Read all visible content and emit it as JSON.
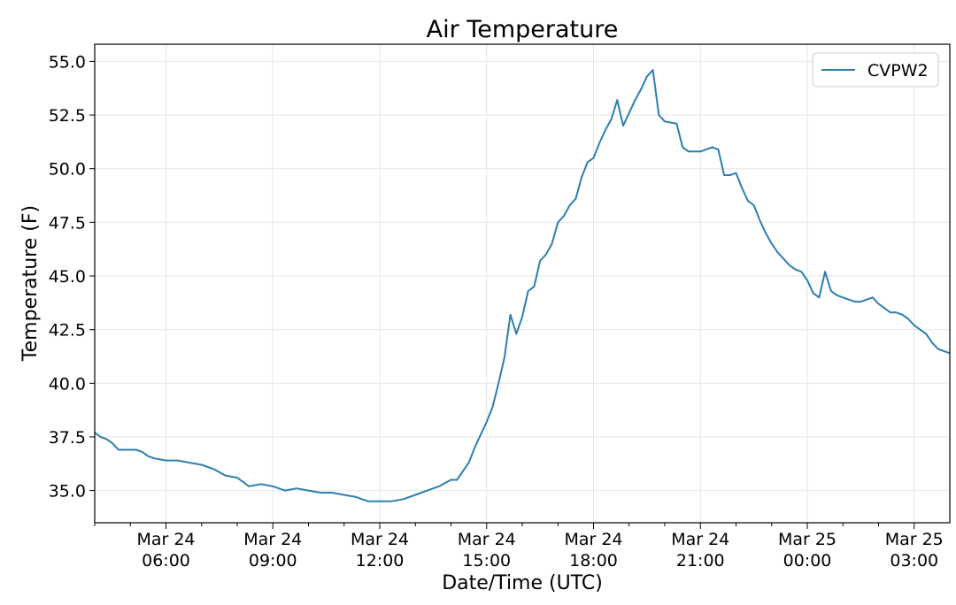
{
  "chart_data": {
    "type": "line",
    "title": "Air Temperature",
    "xlabel": "Date/Time (UTC)",
    "ylabel": "Temperature (F)",
    "x_unit": "hours",
    "xlim": [
      "Mar 24 04:00",
      "Mar 25 04:00"
    ],
    "ylim": [
      33.5,
      55.8
    ],
    "grid": true,
    "legend_position": "top-right",
    "y_ticks": [
      {
        "value": 35.0,
        "label": "35.0"
      },
      {
        "value": 37.5,
        "label": "37.5"
      },
      {
        "value": 40.0,
        "label": "40.0"
      },
      {
        "value": 42.5,
        "label": "42.5"
      },
      {
        "value": 45.0,
        "label": "45.0"
      },
      {
        "value": 47.5,
        "label": "47.5"
      },
      {
        "value": 50.0,
        "label": "50.0"
      },
      {
        "value": 52.5,
        "label": "52.5"
      },
      {
        "value": 55.0,
        "label": "55.0"
      }
    ],
    "x_ticks": [
      {
        "value": "Mar 24 06:00",
        "date": "Mar 24",
        "time": "06:00"
      },
      {
        "value": "Mar 24 09:00",
        "date": "Mar 24",
        "time": "09:00"
      },
      {
        "value": "Mar 24 12:00",
        "date": "Mar 24",
        "time": "12:00"
      },
      {
        "value": "Mar 24 15:00",
        "date": "Mar 24",
        "time": "15:00"
      },
      {
        "value": "Mar 24 18:00",
        "date": "Mar 24",
        "time": "18:00"
      },
      {
        "value": "Mar 24 21:00",
        "date": "Mar 24",
        "time": "21:00"
      },
      {
        "value": "Mar 25 00:00",
        "date": "Mar 25",
        "time": "00:00"
      },
      {
        "value": "Mar 25 03:00",
        "date": "Mar 25",
        "time": "03:00"
      }
    ],
    "x_minor_ticks": [
      "Mar 24 04:00",
      "Mar 24 05:00",
      "Mar 24 07:00",
      "Mar 24 08:00",
      "Mar 24 10:00",
      "Mar 24 11:00",
      "Mar 24 13:00",
      "Mar 24 14:00",
      "Mar 24 16:00",
      "Mar 24 17:00",
      "Mar 24 19:00",
      "Mar 24 20:00",
      "Mar 24 22:00",
      "Mar 24 23:00",
      "Mar 25 01:00",
      "Mar 25 02:00"
    ],
    "series": [
      {
        "name": "CVPW2",
        "color": "#2e7eb0",
        "x": [
          "Mar 24 04:00",
          "Mar 24 04:10",
          "Mar 24 04:20",
          "Mar 24 04:30",
          "Mar 24 04:40",
          "Mar 24 05:00",
          "Mar 24 05:10",
          "Mar 24 05:20",
          "Mar 24 05:30",
          "Mar 24 05:40",
          "Mar 24 06:00",
          "Mar 24 06:20",
          "Mar 24 06:40",
          "Mar 24 07:00",
          "Mar 24 07:20",
          "Mar 24 07:40",
          "Mar 24 08:00",
          "Mar 24 08:20",
          "Mar 24 08:40",
          "Mar 24 09:00",
          "Mar 24 09:20",
          "Mar 24 09:40",
          "Mar 24 10:00",
          "Mar 24 10:20",
          "Mar 24 10:40",
          "Mar 24 11:00",
          "Mar 24 11:20",
          "Mar 24 11:40",
          "Mar 24 12:00",
          "Mar 24 12:20",
          "Mar 24 12:40",
          "Mar 24 13:00",
          "Mar 24 13:20",
          "Mar 24 13:40",
          "Mar 24 14:00",
          "Mar 24 14:10",
          "Mar 24 14:20",
          "Mar 24 14:30",
          "Mar 24 14:40",
          "Mar 24 14:50",
          "Mar 24 15:00",
          "Mar 24 15:10",
          "Mar 24 15:20",
          "Mar 24 15:30",
          "Mar 24 15:40",
          "Mar 24 15:50",
          "Mar 24 16:00",
          "Mar 24 16:10",
          "Mar 24 16:20",
          "Mar 24 16:30",
          "Mar 24 16:40",
          "Mar 24 16:50",
          "Mar 24 17:00",
          "Mar 24 17:10",
          "Mar 24 17:20",
          "Mar 24 17:30",
          "Mar 24 17:40",
          "Mar 24 17:50",
          "Mar 24 18:00",
          "Mar 24 18:10",
          "Mar 24 18:20",
          "Mar 24 18:30",
          "Mar 24 18:40",
          "Mar 24 18:50",
          "Mar 24 19:00",
          "Mar 24 19:10",
          "Mar 24 19:20",
          "Mar 24 19:30",
          "Mar 24 19:40",
          "Mar 24 19:50",
          "Mar 24 20:00",
          "Mar 24 20:20",
          "Mar 24 20:30",
          "Mar 24 20:40",
          "Mar 24 21:00",
          "Mar 24 21:20",
          "Mar 24 21:30",
          "Mar 24 21:40",
          "Mar 24 21:50",
          "Mar 24 22:00",
          "Mar 24 22:10",
          "Mar 24 22:20",
          "Mar 24 22:30",
          "Mar 24 22:40",
          "Mar 24 22:50",
          "Mar 24 23:00",
          "Mar 24 23:10",
          "Mar 24 23:20",
          "Mar 24 23:30",
          "Mar 24 23:40",
          "Mar 24 23:50",
          "Mar 25 00:00",
          "Mar 25 00:10",
          "Mar 25 00:20",
          "Mar 25 00:30",
          "Mar 25 00:40",
          "Mar 25 00:50",
          "Mar 25 01:00",
          "Mar 25 01:10",
          "Mar 25 01:20",
          "Mar 25 01:30",
          "Mar 25 01:40",
          "Mar 25 01:50",
          "Mar 25 02:00",
          "Mar 25 02:10",
          "Mar 25 02:20",
          "Mar 25 02:30",
          "Mar 25 02:40",
          "Mar 25 02:50",
          "Mar 25 03:00",
          "Mar 25 03:10",
          "Mar 25 03:20",
          "Mar 25 03:30",
          "Mar 25 03:40",
          "Mar 25 03:50",
          "Mar 25 04:00"
        ],
        "y": [
          37.7,
          37.5,
          37.4,
          37.2,
          36.9,
          36.9,
          36.9,
          36.8,
          36.6,
          36.5,
          36.4,
          36.4,
          36.3,
          36.2,
          36.0,
          35.7,
          35.6,
          35.2,
          35.3,
          35.2,
          35.0,
          35.1,
          35.0,
          34.9,
          34.9,
          34.8,
          34.7,
          34.5,
          34.5,
          34.5,
          34.6,
          34.8,
          35.0,
          35.2,
          35.5,
          35.5,
          35.9,
          36.3,
          37.0,
          37.6,
          38.2,
          38.9,
          40.0,
          41.2,
          43.2,
          42.3,
          43.1,
          44.3,
          44.5,
          45.7,
          46.0,
          46.5,
          47.5,
          47.8,
          48.3,
          48.6,
          49.6,
          50.3,
          50.5,
          51.2,
          51.8,
          52.3,
          53.2,
          52.0,
          52.6,
          53.2,
          53.7,
          54.3,
          54.6,
          52.5,
          52.2,
          52.1,
          51.0,
          50.8,
          50.8,
          51.0,
          50.9,
          49.7,
          49.7,
          49.8,
          49.1,
          48.5,
          48.3,
          47.6,
          47.0,
          46.5,
          46.1,
          45.8,
          45.5,
          45.3,
          45.2,
          44.8,
          44.2,
          44.0,
          45.2,
          44.3,
          44.1,
          44.0,
          43.9,
          43.8,
          43.8,
          43.9,
          44.0,
          43.7,
          43.5,
          43.3,
          43.3,
          43.2,
          43.0,
          42.7,
          42.5,
          42.3,
          41.9,
          41.6,
          41.5,
          41.4
        ]
      }
    ]
  }
}
